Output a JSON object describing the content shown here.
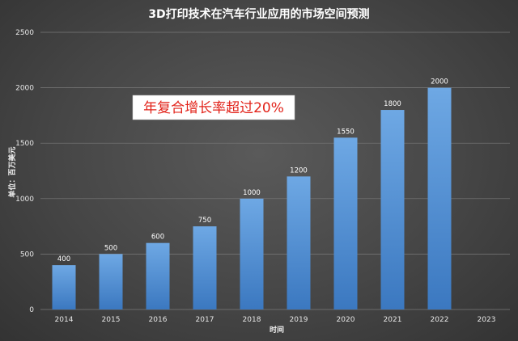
{
  "chart_data": {
    "type": "bar",
    "title": "3D打印技术在汽车行业应用的市场空间预测",
    "xlabel": "时间",
    "ylabel": "单位：百万美元",
    "categories": [
      "2014",
      "2015",
      "2016",
      "2017",
      "2018",
      "2019",
      "2020",
      "2021",
      "2022",
      "2023"
    ],
    "values": [
      400,
      500,
      600,
      750,
      1000,
      1200,
      1550,
      1800,
      2000,
      null
    ],
    "data_labels": [
      "400",
      "500",
      "600",
      "750",
      "1000",
      "1200",
      "1550",
      "1800",
      "2000",
      ""
    ],
    "ylim": [
      0,
      2500
    ],
    "yticks": [
      0,
      500,
      1000,
      1500,
      2000,
      2500
    ],
    "grid": true,
    "legend": "none",
    "annotation": "年复合增长率超过20%",
    "colors": {
      "bar_top": "#6ea8e4",
      "bar_bottom": "#3b78c0",
      "grid": "#7a7a7a",
      "annotation_text": "#e2231a",
      "annotation_bg": "#ffffff"
    }
  }
}
